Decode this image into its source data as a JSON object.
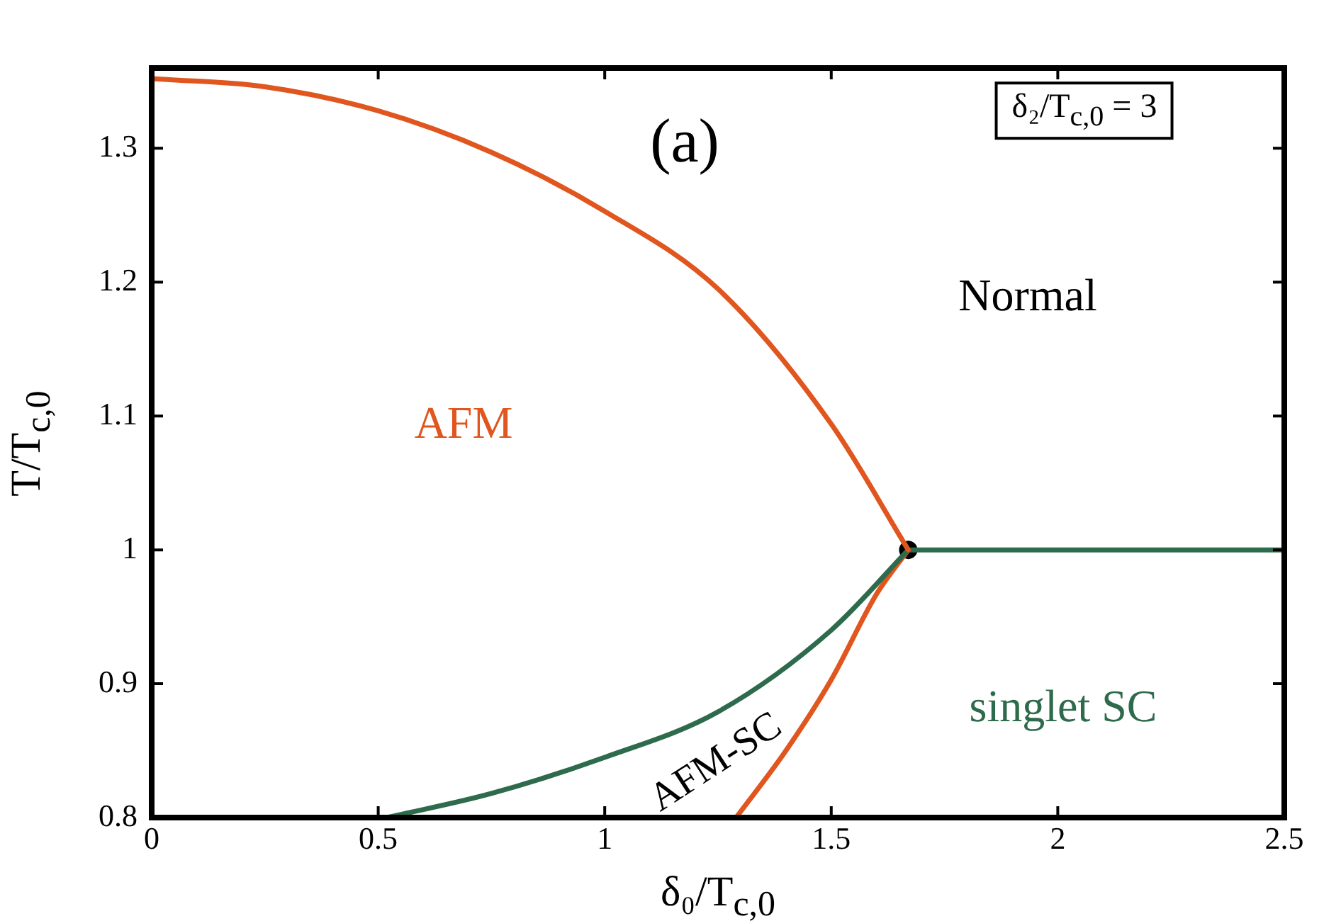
{
  "chart_data": {
    "type": "line",
    "xlabel": "δ₀/T$_{c,0}$",
    "ylabel": "T/T$_{c,0}$",
    "xlim": [
      0,
      2.5
    ],
    "xticks": [
      0,
      0.5,
      1,
      1.5,
      2,
      2.5
    ],
    "ylim": [
      0.8,
      1.36
    ],
    "yticks": [
      0.8,
      0.9,
      {
        "value": 1,
        "label": "1"
      },
      1.1,
      1.2,
      1.3
    ],
    "grid": false,
    "legend": false,
    "series": [
      {
        "color": "#e0561e",
        "x": [
          0,
          0.25,
          0.5,
          0.75,
          1,
          1.25,
          1.5,
          1.67
        ],
        "values": [
          1.352,
          1.346,
          1.328,
          1.297,
          1.253,
          1.195,
          1.094,
          1.0
        ]
      },
      {
        "color": "#2e6a4c",
        "x": [
          0.52,
          0.75,
          1,
          1.25,
          1.5,
          1.67
        ],
        "values": [
          0.8,
          0.818,
          0.845,
          0.879,
          0.94,
          1.0
        ]
      },
      {
        "color": "#e0561e",
        "x": [
          1.29,
          1.4,
          1.5,
          1.6,
          1.67
        ],
        "values": [
          0.8,
          0.85,
          0.903,
          0.967,
          1.0
        ]
      },
      {
        "color": "#2e6a4c",
        "x": [
          1.67,
          2.5
        ],
        "values": [
          1.0,
          1.0
        ]
      },
      {
        "type": "scatter",
        "color": "#000000",
        "marker": "circle",
        "x": [
          1.67
        ],
        "values": [
          1.0
        ]
      }
    ],
    "annotations": [
      "(a)",
      "δ₂/T$_{c,0}$ = 3",
      "Normal",
      "AFM",
      "AFM-SC",
      "singlet SC"
    ]
  }
}
